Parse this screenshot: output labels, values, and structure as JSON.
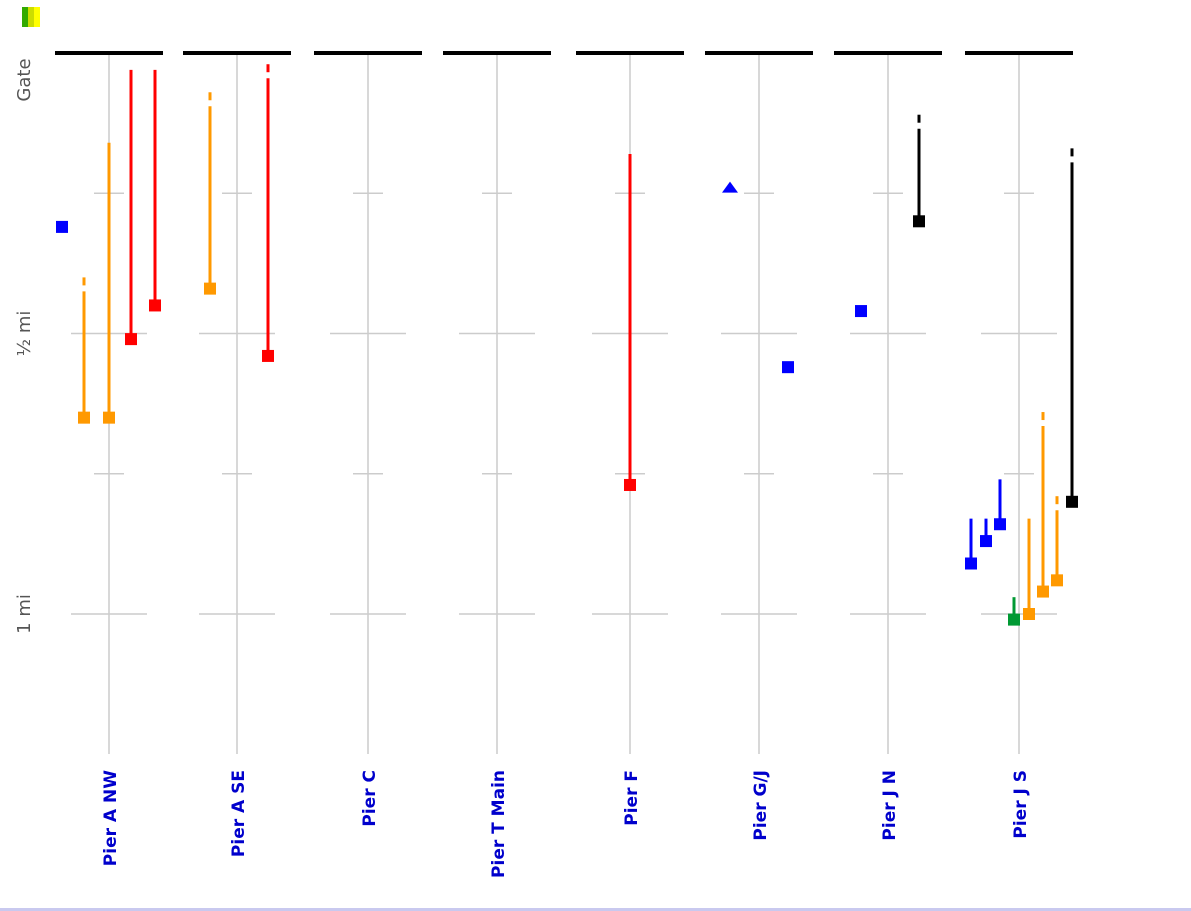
{
  "legend": {
    "swatch_colors": [
      "#33aa00",
      "#ccdd00",
      "#ffff00"
    ]
  },
  "colors": {
    "blue": "#0000ff",
    "orange": "#ff9900",
    "red": "#ff0000",
    "black": "#000000",
    "green": "#009933",
    "label": "#0000cc",
    "axis_text": "#555555",
    "grid": "#cccccc"
  },
  "chart_data": {
    "type": "scatter",
    "y_axis": {
      "ticks": [
        {
          "value": 0,
          "label": "Gate"
        },
        {
          "value": 0.5,
          "label": "½ mi"
        },
        {
          "value": 1,
          "label": "1 mi"
        }
      ],
      "minor_ticks": [
        0.25,
        0.75
      ],
      "range": [
        0,
        1.25
      ],
      "inverted": true
    },
    "categories": [
      "Pier A NW",
      "Pier A SE",
      "Pier C",
      "Pier T Main",
      "Pier F",
      "Pier G/J",
      "Pier J N",
      "Pier J S"
    ],
    "grid": true,
    "series": [
      {
        "color": "orange",
        "values": [
          {
            "pier": 0,
            "offset": -25,
            "y": 0.65,
            "top": 0.4,
            "dashed_top": true
          },
          {
            "pier": 0,
            "offset": 0,
            "y": 0.65,
            "top": 0.16
          },
          {
            "pier": 1,
            "offset": -27,
            "y": 0.42,
            "top": 0.07,
            "dashed_top": true
          },
          {
            "pier": 7,
            "offset": 10,
            "y": 1.0,
            "top": 0.83
          },
          {
            "pier": 7,
            "offset": 24,
            "y": 0.96,
            "top": 0.64,
            "dashed_top": true
          },
          {
            "pier": 7,
            "offset": 38,
            "y": 0.94,
            "top": 0.79,
            "dashed_top": true
          }
        ]
      },
      {
        "color": "red",
        "values": [
          {
            "pier": 0,
            "offset": 22,
            "y": 0.51,
            "top": 0.03
          },
          {
            "pier": 0,
            "offset": 46,
            "y": 0.45,
            "top": 0.03
          },
          {
            "pier": 1,
            "offset": 31,
            "y": 0.54,
            "top": 0.02,
            "dashed_top": true
          },
          {
            "pier": 4,
            "offset": 0,
            "y": 0.77,
            "top": 0.18
          }
        ]
      },
      {
        "color": "blue",
        "values": [
          {
            "pier": 0,
            "offset": -47,
            "y": 0.31
          },
          {
            "pier": 5,
            "offset": -29,
            "y": 0.24,
            "marker": "triangle"
          },
          {
            "pier": 5,
            "offset": 29,
            "y": 0.56
          },
          {
            "pier": 6,
            "offset": -27,
            "y": 0.46
          },
          {
            "pier": 7,
            "offset": -48,
            "y": 0.91,
            "top": 0.83
          },
          {
            "pier": 7,
            "offset": -33,
            "y": 0.87,
            "top": 0.83
          },
          {
            "pier": 7,
            "offset": -19,
            "y": 0.84,
            "top": 0.76
          }
        ]
      },
      {
        "color": "black",
        "values": [
          {
            "pier": 6,
            "offset": 31,
            "y": 0.3,
            "top": 0.11,
            "dashed_top": true
          },
          {
            "pier": 7,
            "offset": 53,
            "y": 0.8,
            "top": 0.17,
            "dashed_top": true
          }
        ]
      },
      {
        "color": "green",
        "values": [
          {
            "pier": 7,
            "offset": -5,
            "y": 1.01,
            "top": 0.97
          }
        ]
      }
    ]
  }
}
